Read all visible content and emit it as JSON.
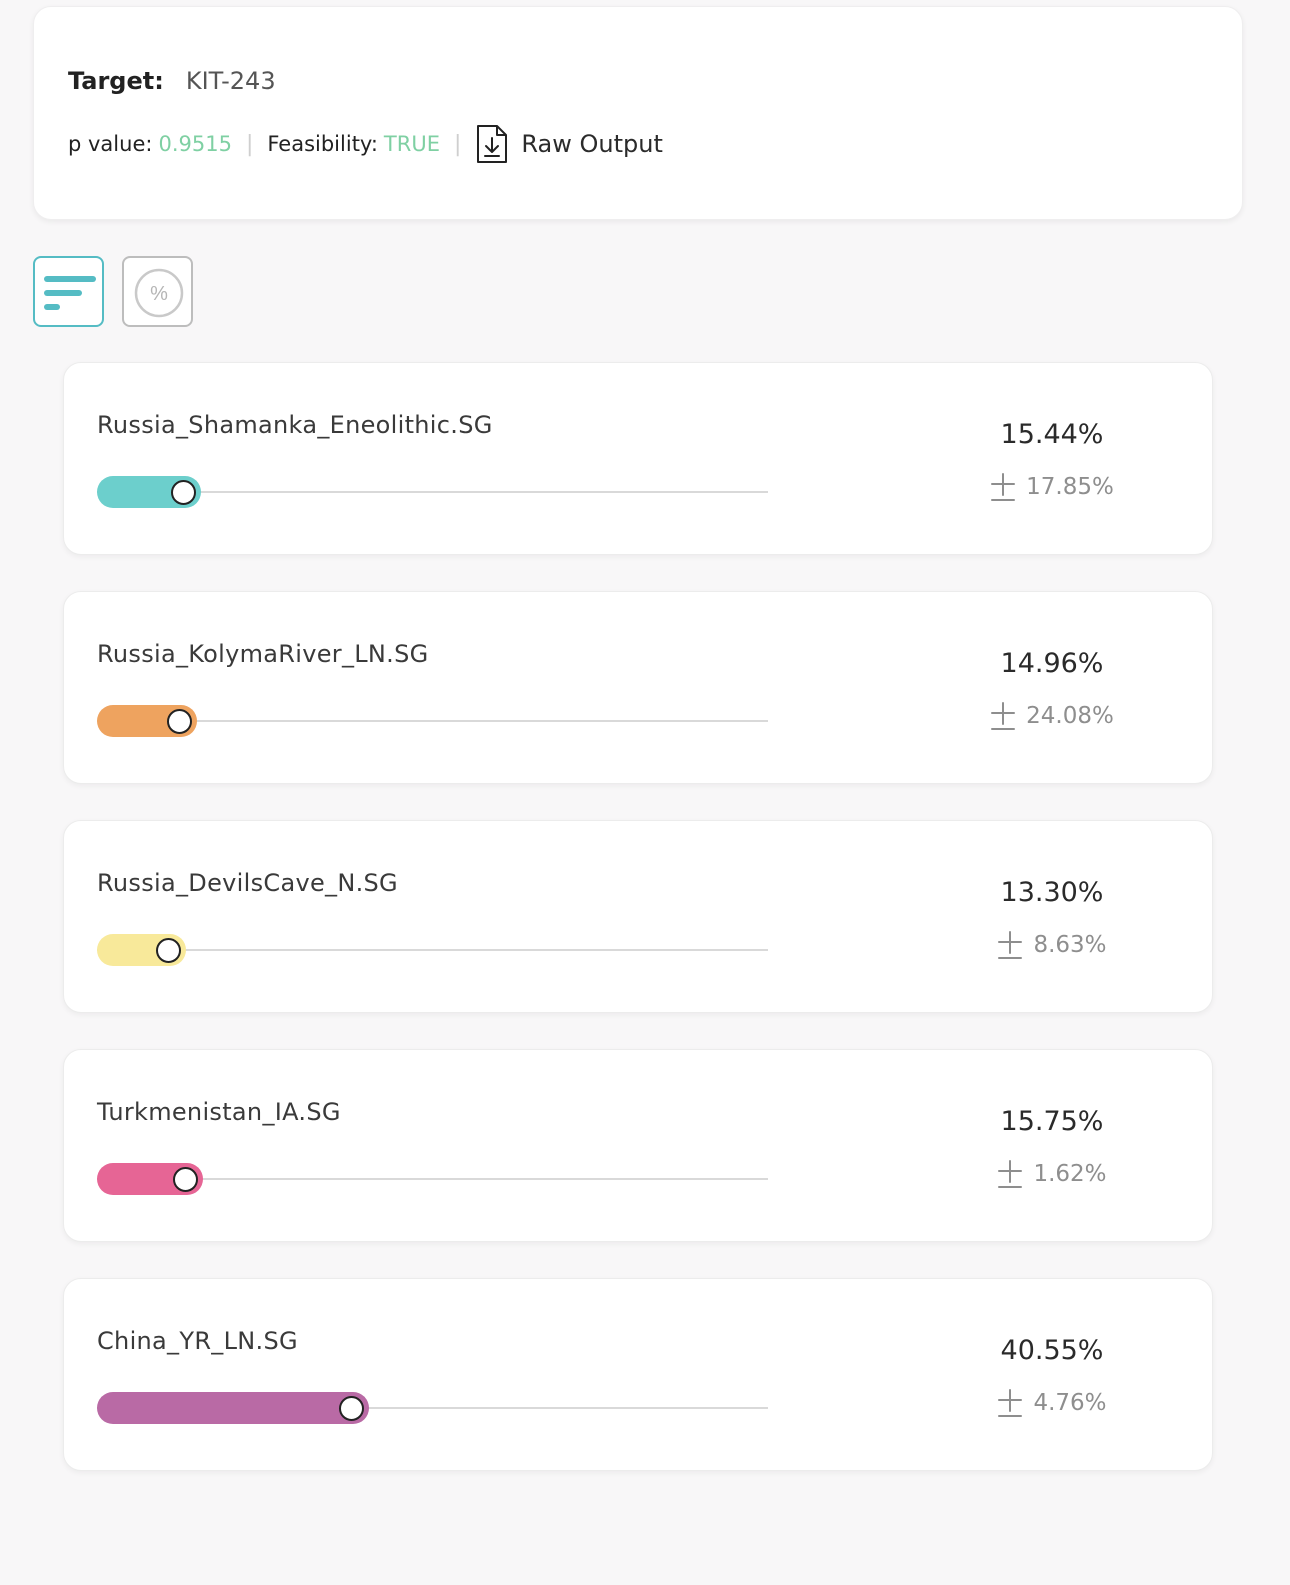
{
  "header": {
    "target_label": "Target:",
    "target_value": "KIT-243",
    "p_value_label": "p value:",
    "p_value": "0.9515",
    "separator": "|",
    "feasibility_label": "Feasibility:",
    "feasibility_value": "TRUE",
    "raw_output_label": "Raw Output",
    "raw_output_icon": "file-download-icon"
  },
  "view_toggle": {
    "bars_icon": "bar-list-icon",
    "percent_icon": "percent-circle-icon",
    "percent_symbol": "%"
  },
  "populations": [
    {
      "name": "Russia_Shamanka_Eneolithic.SG",
      "percent": "15.44%",
      "error": "17.85%",
      "value": 15.44,
      "color": "#6ccfcc"
    },
    {
      "name": "Russia_KolymaRiver_LN.SG",
      "percent": "14.96%",
      "error": "24.08%",
      "value": 14.96,
      "color": "#eea35f"
    },
    {
      "name": "Russia_DevilsCave_N.SG",
      "percent": "13.30%",
      "error": "8.63%",
      "value": 13.3,
      "color": "#f8e99a"
    },
    {
      "name": "Turkmenistan_IA.SG",
      "percent": "15.75%",
      "error": "1.62%",
      "value": 15.75,
      "color": "#e66595"
    },
    {
      "name": "China_YR_LN.SG",
      "percent": "40.55%",
      "error": "4.76%",
      "value": 40.55,
      "color": "#b96aa5"
    }
  ],
  "error_icon": "plus-minus-icon"
}
